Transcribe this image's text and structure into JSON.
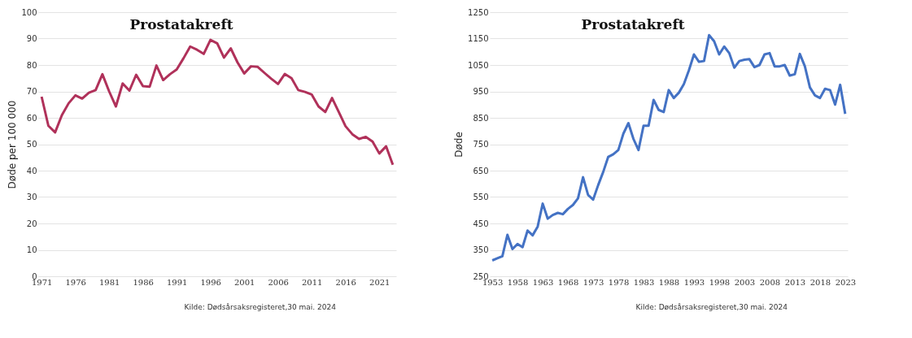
{
  "chart_data": [
    {
      "type": "line",
      "title": "Prostatakreft",
      "ylabel": "Døde per 100 000",
      "xlim": [
        1970.5,
        2023.5
      ],
      "xticks": [
        1971,
        1976,
        1981,
        1986,
        1991,
        1996,
        2001,
        2006,
        2011,
        2016,
        2021
      ],
      "ylim": [
        0,
        100
      ],
      "yticks": [
        0,
        10,
        20,
        30,
        40,
        50,
        60,
        70,
        80,
        90,
        100
      ],
      "grid": "y",
      "annotations": [
        "Kilde: Dødsårsaksregisteret,30 mai. 2024"
      ],
      "x": [
        1971,
        1972,
        1973,
        1974,
        1975,
        1976,
        1977,
        1978,
        1979,
        1980,
        1981,
        1982,
        1983,
        1984,
        1985,
        1986,
        1987,
        1988,
        1989,
        1990,
        1991,
        1992,
        1993,
        1994,
        1995,
        1996,
        1997,
        1998,
        1999,
        2000,
        2001,
        2002,
        2003,
        2004,
        2005,
        2006,
        2007,
        2008,
        2009,
        2010,
        2011,
        2012,
        2013,
        2014,
        2015,
        2016,
        2017,
        2018,
        2019,
        2020,
        2021,
        2022,
        2023
      ],
      "series": [
        {
          "color": "#b0315a",
          "values": [
            68,
            57,
            54.5,
            61,
            65.5,
            68.5,
            67.3,
            69.5,
            70.5,
            76.5,
            70,
            64.3,
            73,
            70.3,
            76.3,
            72,
            71.8,
            79.8,
            74.3,
            76.5,
            78.3,
            82.5,
            87,
            85.8,
            84.2,
            89.5,
            88.2,
            82.8,
            86.3,
            81,
            76.8,
            79.5,
            79.3,
            77,
            74.8,
            72.8,
            76.6,
            75,
            70.5,
            69.8,
            68.8,
            64.3,
            62.2,
            67.5,
            62.2,
            56.8,
            53.8,
            52,
            52.8,
            51,
            46.5,
            49.2,
            42.2
          ]
        }
      ]
    },
    {
      "type": "line",
      "title": "Prostatakreft",
      "ylabel": "Døde",
      "xlim": [
        1952.5,
        2023.5
      ],
      "xticks": [
        1953,
        1958,
        1963,
        1968,
        1973,
        1978,
        1983,
        1988,
        1993,
        1998,
        2003,
        2008,
        2013,
        2018,
        2023
      ],
      "ylim": [
        250,
        1250
      ],
      "yticks": [
        250,
        350,
        450,
        550,
        650,
        750,
        850,
        950,
        1050,
        1150,
        1250
      ],
      "grid": "y",
      "annotations": [
        "Kilde: Dødsårsaksregisteret,30 mai. 2024"
      ],
      "x": [
        1953,
        1954,
        1955,
        1956,
        1957,
        1958,
        1959,
        1960,
        1961,
        1962,
        1963,
        1964,
        1965,
        1966,
        1967,
        1968,
        1969,
        1970,
        1971,
        1972,
        1973,
        1974,
        1975,
        1976,
        1977,
        1978,
        1979,
        1980,
        1981,
        1982,
        1983,
        1984,
        1985,
        1986,
        1987,
        1988,
        1989,
        1990,
        1991,
        1992,
        1993,
        1994,
        1995,
        1996,
        1997,
        1998,
        1999,
        2000,
        2001,
        2002,
        2003,
        2004,
        2005,
        2006,
        2007,
        2008,
        2009,
        2010,
        2011,
        2012,
        2013,
        2014,
        2015,
        2016,
        2017,
        2018,
        2019,
        2020,
        2021,
        2022,
        2023
      ],
      "series": [
        {
          "color": "#4472c4",
          "values": [
            310,
            318,
            326,
            407,
            353,
            372,
            360,
            423,
            405,
            438,
            525,
            468,
            482,
            490,
            485,
            505,
            520,
            545,
            625,
            558,
            540,
            595,
            645,
            702,
            712,
            728,
            790,
            830,
            770,
            728,
            820,
            820,
            918,
            880,
            872,
            955,
            925,
            945,
            978,
            1030,
            1090,
            1062,
            1065,
            1163,
            1140,
            1090,
            1120,
            1095,
            1040,
            1065,
            1070,
            1072,
            1042,
            1050,
            1090,
            1095,
            1045,
            1045,
            1050,
            1010,
            1015,
            1092,
            1045,
            965,
            935,
            925,
            960,
            955,
            900,
            975,
            865
          ]
        }
      ]
    }
  ]
}
